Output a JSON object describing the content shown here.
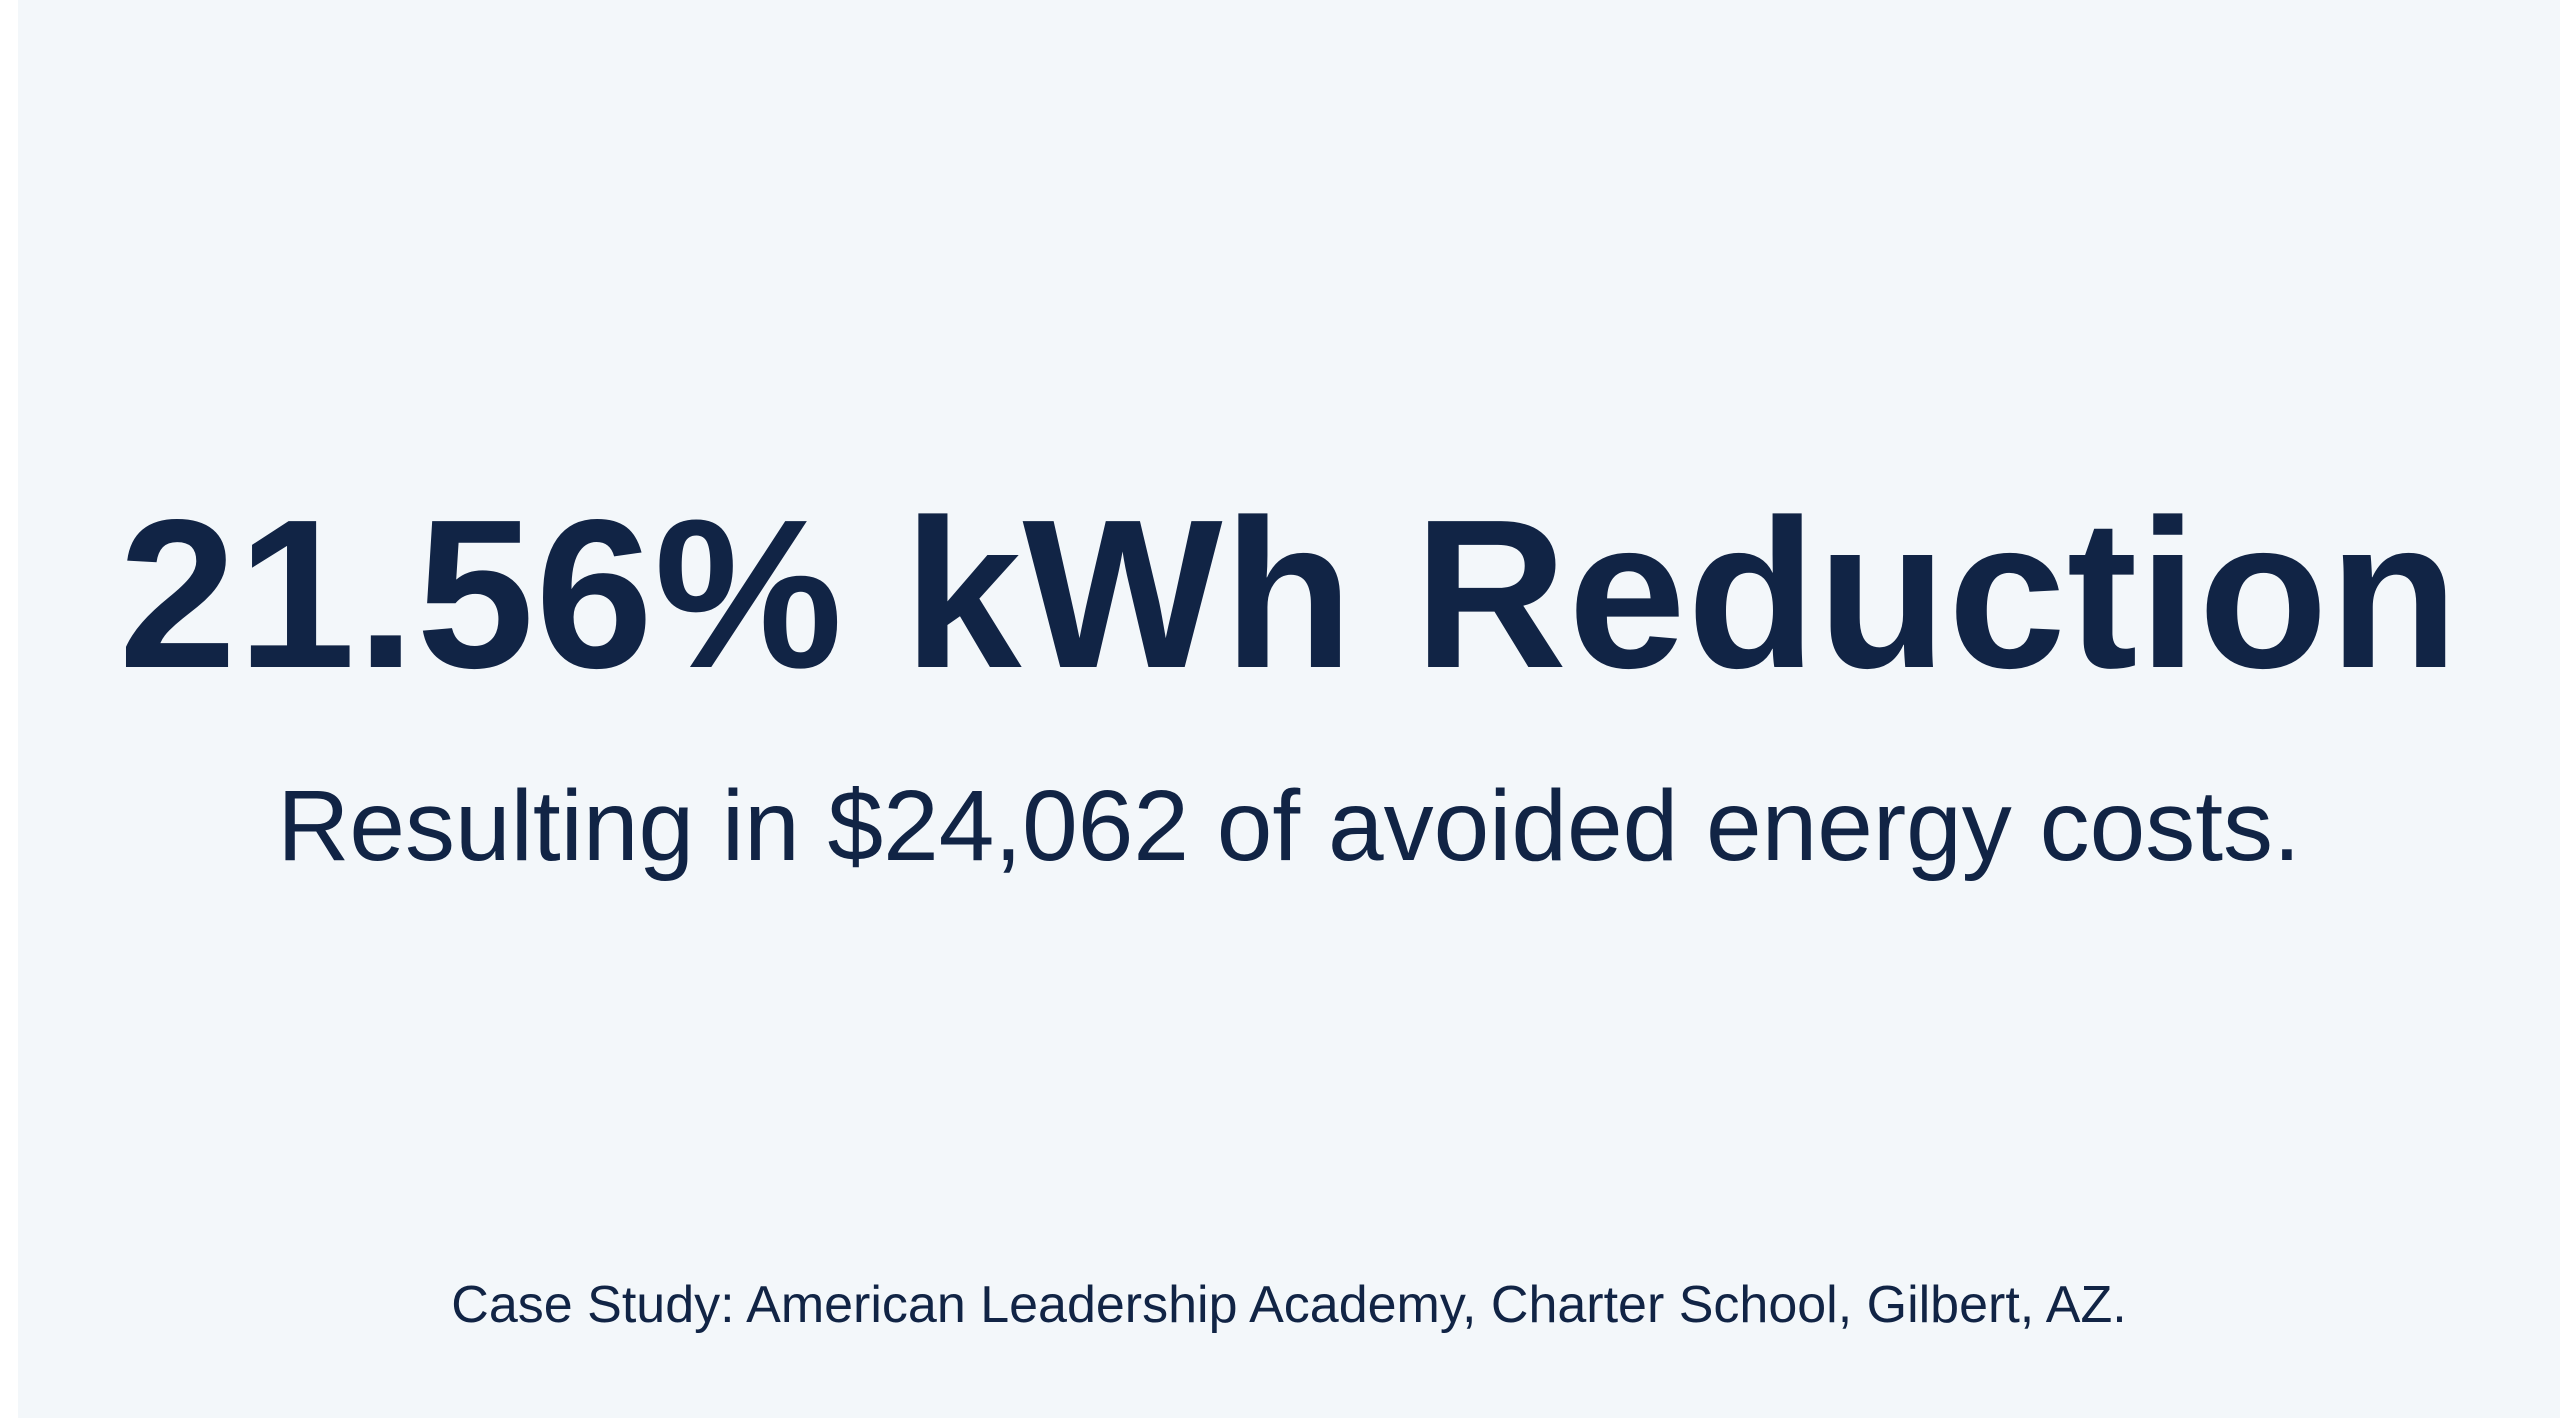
{
  "slide": {
    "headline": "21.56% kWh Reduction",
    "subline": "Resulting in $24,062 of avoided energy costs.",
    "footer": "Case Study: American Leadership Academy, Charter School, Gilbert, AZ."
  },
  "colors": {
    "background": "#f3f7fa",
    "text": "#112445"
  }
}
